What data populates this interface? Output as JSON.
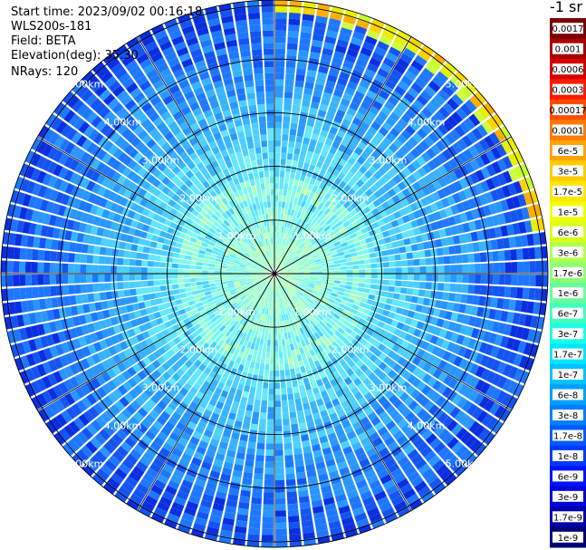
{
  "info": {
    "start_time": "Start time: 2023/09/02 00:16:18",
    "instrument": "WLS200s-181",
    "field": "Field: BETA",
    "elevation": "Elevation(deg): 35.30",
    "nrays": "NRays: 120"
  },
  "colorbar": {
    "unit": "-1 sr",
    "labels": [
      "0.0017",
      "0.001",
      "0.0006",
      "0.0003",
      "0.00017",
      "0.0001",
      "6e-5",
      "3e-5",
      "1.7e-5",
      "1e-5",
      "6e-6",
      "3e-6",
      "1.7e-6",
      "1e-6",
      "6e-7",
      "3e-7",
      "1.7e-7",
      "1e-7",
      "6e-8",
      "3e-8",
      "1.7e-8",
      "1e-8",
      "6e-9",
      "3e-9",
      "1.7e-9",
      "1e-9"
    ],
    "colors": [
      "#7a0000",
      "#a80000",
      "#d40000",
      "#ff1a00",
      "#ff4d00",
      "#ff7a00",
      "#ffa300",
      "#ffcc00",
      "#ffe600",
      "#f2ff00",
      "#d9ff1a",
      "#b3ff4d",
      "#8cff73",
      "#66ff99",
      "#40ffbf",
      "#1affe6",
      "#00e6ff",
      "#00c3ff",
      "#00a0ff",
      "#0080ff",
      "#005cff",
      "#0038ff",
      "#0014ff",
      "#0000dd",
      "#0000aa",
      "#000077"
    ]
  },
  "chart_data": {
    "type": "heatmap",
    "projection": "polar PPI",
    "field": "BETA",
    "rays": 120,
    "range_rings_km": [
      "1.00km",
      "2.00km",
      "3.00km",
      "4.00km",
      "5.00km"
    ],
    "value_range": [
      "1e-9",
      "0.0017"
    ],
    "pattern": "near-field (under ~1.5 km) dominated by green/cyan values (~1e-7 to 1e-6); mid ranges cyan-blue (~1e-8 to 1e-7); far ranges blue (~1e-9 to 1e-8); outer edge at north-east shows yellow-orange band (~1e-5 to 3e-5)"
  }
}
